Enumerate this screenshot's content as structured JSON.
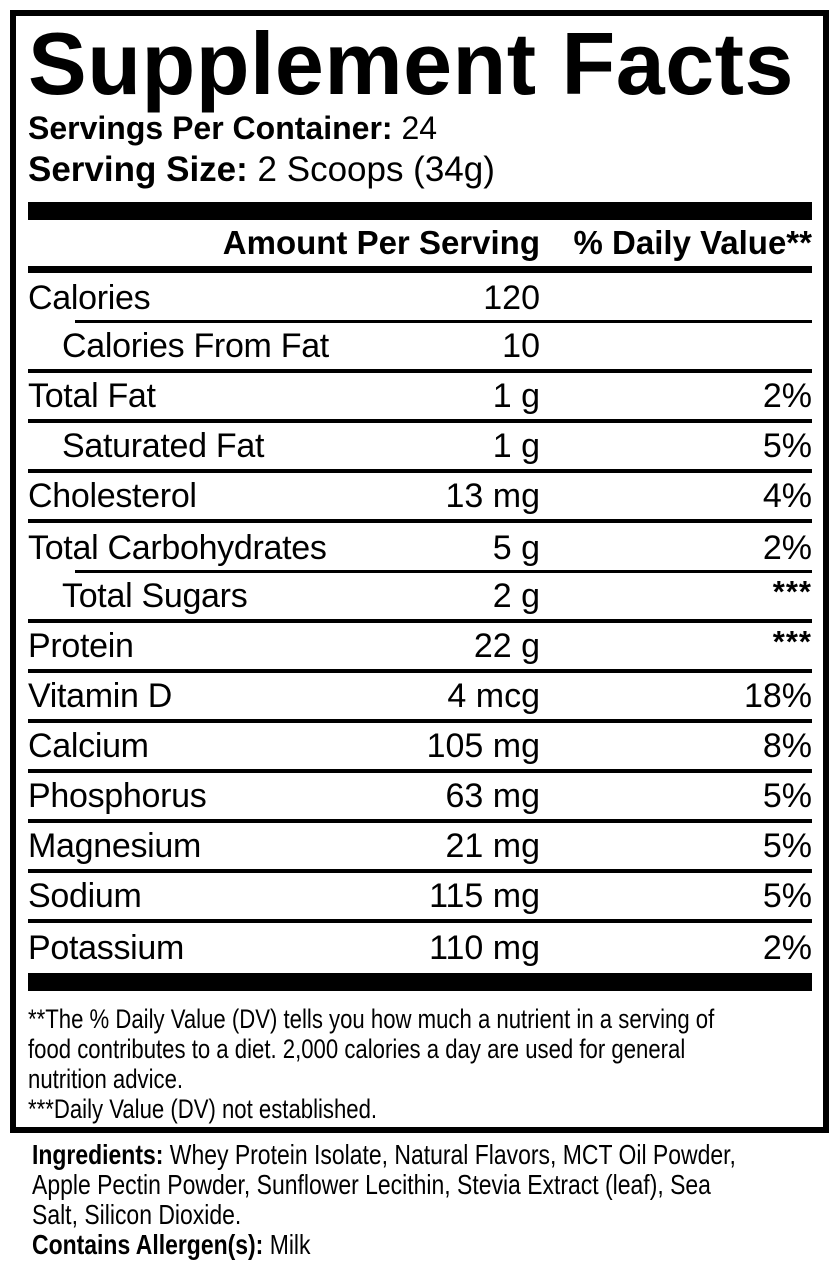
{
  "label": {
    "title": "Supplement Facts",
    "servings_per_container_label": "Servings Per Container:",
    "servings_per_container_value": "24",
    "serving_size_label": "Serving Size:",
    "serving_size_value": "2 Scoops (34g)",
    "columns": {
      "amount": "Amount Per Serving",
      "daily_value": "% Daily Value**"
    },
    "rows": [
      {
        "name": "Calories",
        "amount": "120",
        "dv": ""
      },
      {
        "name": "Calories From Fat",
        "amount": "10",
        "dv": ""
      },
      {
        "name": "Total Fat",
        "amount": "1 g",
        "dv": "2%"
      },
      {
        "name": "Saturated Fat",
        "amount": "1 g",
        "dv": "5%"
      },
      {
        "name": "Cholesterol",
        "amount": "13 mg",
        "dv": "4%"
      },
      {
        "name": "Total Carbohydrates",
        "amount": "5 g",
        "dv": "2%"
      },
      {
        "name": "Total Sugars",
        "amount": "2 g",
        "dv": "***"
      },
      {
        "name": "Protein",
        "amount": "22 g",
        "dv": "***"
      },
      {
        "name": "Vitamin D",
        "amount": "4 mcg",
        "dv": "18%"
      },
      {
        "name": "Calcium",
        "amount": "105 mg",
        "dv": "8%"
      },
      {
        "name": "Phosphorus",
        "amount": "63 mg",
        "dv": "5%"
      },
      {
        "name": "Magnesium",
        "amount": "21 mg",
        "dv": "5%"
      },
      {
        "name": "Sodium",
        "amount": "115 mg",
        "dv": "5%"
      },
      {
        "name": "Potassium",
        "amount": "110 mg",
        "dv": "2%"
      }
    ],
    "footnotes": {
      "daily_value_note_lines": [
        "**The % Daily Value (DV) tells you how much a nutrient in a serving of",
        "food contributes to a diet. 2,000 calories a day are used for general",
        "nutrition advice."
      ],
      "not_established_note": "***Daily Value (DV) not established."
    }
  },
  "ingredients": {
    "label": "Ingredients:",
    "lines": [
      "Whey Protein Isolate, Natural Flavors, MCT Oil Powder,",
      "Apple Pectin Powder, Sunflower Lecithin, Stevia Extract (leaf), Sea",
      "Salt, Silicon Dioxide."
    ],
    "allergen_label": "Contains Allergen(s):",
    "allergen_value": "Milk"
  },
  "colors": {
    "text": "#000000",
    "background": "#ffffff"
  }
}
